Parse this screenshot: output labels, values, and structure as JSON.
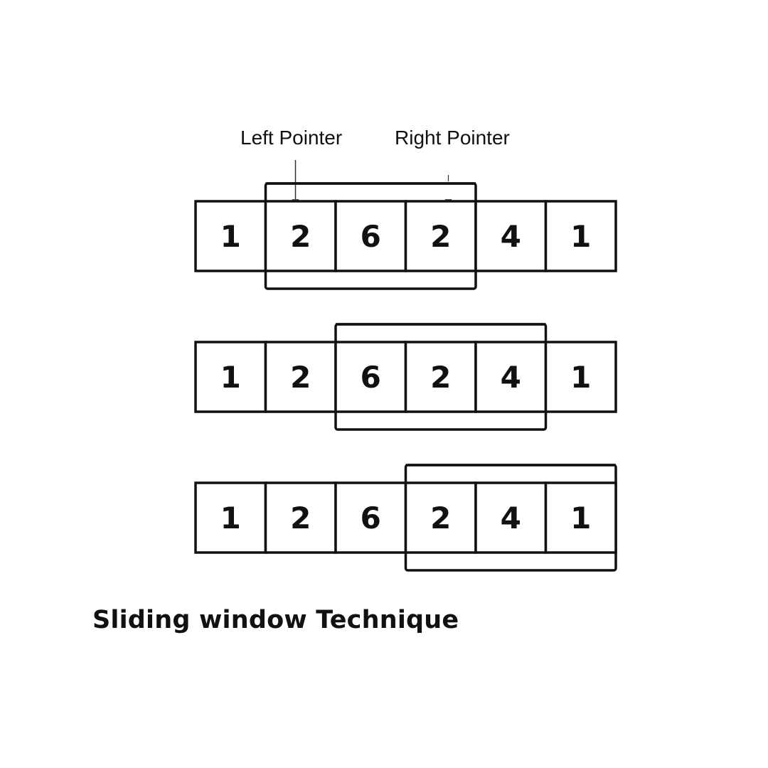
{
  "labels": {
    "left_pointer": "Left Pointer",
    "right_pointer": "Right Pointer"
  },
  "array": [
    "1",
    "2",
    "6",
    "2",
    "4",
    "1"
  ],
  "windows": [
    {
      "start": 1,
      "end": 3
    },
    {
      "start": 2,
      "end": 4
    },
    {
      "start": 3,
      "end": 5
    }
  ],
  "caption": "Sliding window Technique"
}
